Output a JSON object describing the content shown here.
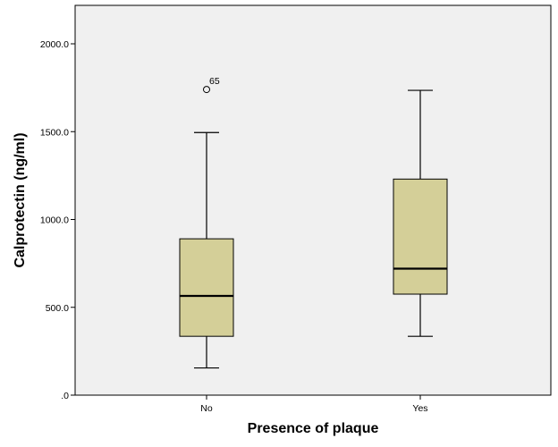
{
  "chart_data": {
    "type": "boxplot",
    "xlabel": "Presence of plaque",
    "ylabel": "Calprotectin (ng/ml)",
    "ylim": [
      0,
      2200
    ],
    "yticks": [
      0,
      500,
      1000,
      1500,
      2000
    ],
    "ytick_labels": [
      ".0",
      "500.0",
      "1000.0",
      "1500.0",
      "2000.0"
    ],
    "grid": false,
    "legend": "none",
    "box_color": "#d4cf98",
    "plot_background": "#f0f0f0",
    "categories": [
      "No",
      "Yes"
    ],
    "boxes": [
      {
        "category": "No",
        "whisker_low": 155,
        "q1": 335,
        "median": 565,
        "q3": 890,
        "whisker_high": 1495,
        "outliers": [
          {
            "value": 1740,
            "label": "65"
          }
        ]
      },
      {
        "category": "Yes",
        "whisker_low": 335,
        "q1": 575,
        "median": 720,
        "q3": 1230,
        "whisker_high": 1735,
        "outliers": []
      }
    ]
  }
}
